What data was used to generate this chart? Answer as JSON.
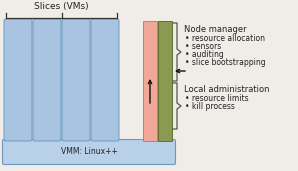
{
  "fig_bg": "#f0ede8",
  "slice_color": "#a8c4e0",
  "slice_border": "#6a9bbf",
  "vmm_color": "#b8d0e8",
  "vmm_border": "#6a9bbf",
  "pink_color": "#f2a898",
  "pink_border": "#c08070",
  "olive_color": "#8a9a50",
  "olive_border": "#607030",
  "title": "Slices (VMs)",
  "vmm_label": "VMM: Linux++",
  "node_manager_title": "Node manager",
  "node_manager_bullets": [
    "resource allocation",
    "sensors",
    "auditing",
    "slice bootstrapping"
  ],
  "local_admin_title": "Local administration",
  "local_admin_bullets": [
    "resource limits",
    "kill process"
  ],
  "font_size": 5.5,
  "title_font_size": 6.5,
  "text_color": "#222222"
}
